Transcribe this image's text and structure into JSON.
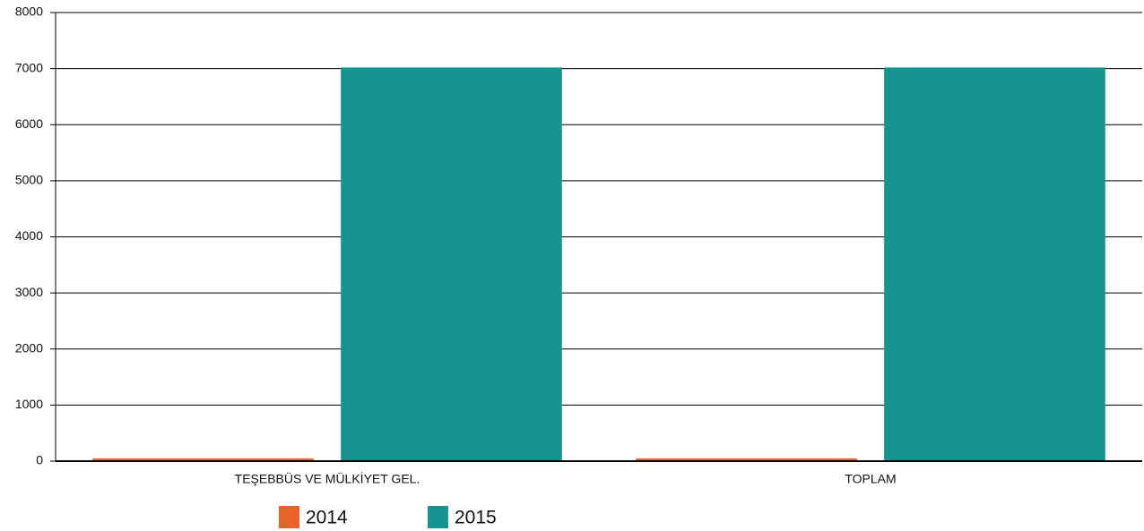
{
  "chart_data": {
    "type": "bar",
    "categories": [
      "TEŞEBBÜS VE MÜLKİYET GEL.",
      "TOPLAM"
    ],
    "series": [
      {
        "name": "2014",
        "color": "#e8622a",
        "values": [
          50,
          50
        ]
      },
      {
        "name": "2015",
        "color": "#169590",
        "values": [
          7020,
          7020
        ]
      }
    ],
    "ylim": [
      0,
      8000
    ],
    "yticks": [
      0,
      1000,
      2000,
      3000,
      4000,
      5000,
      6000,
      7000,
      8000
    ],
    "grid": true
  }
}
